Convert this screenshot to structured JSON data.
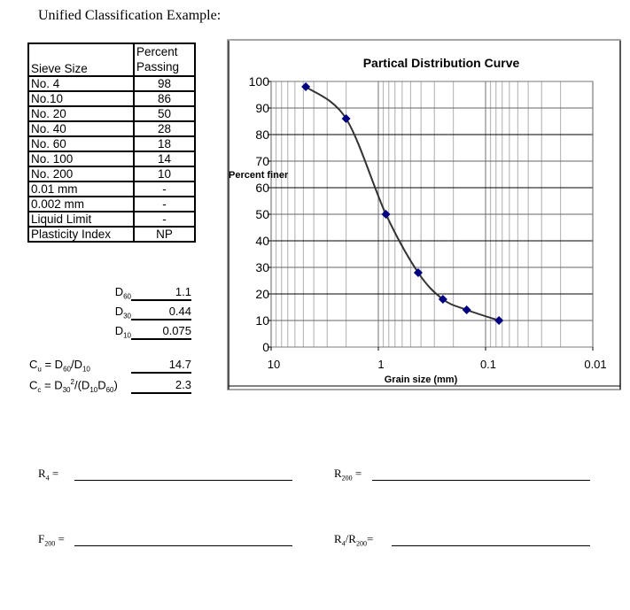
{
  "page": {
    "title": "Unified Classification Example:"
  },
  "sieve_table": {
    "headers": {
      "col1": "Sieve Size",
      "col2_line1": "Percent",
      "col2_line2": "Passing"
    },
    "rows": [
      {
        "label": "No. 4",
        "value": "98"
      },
      {
        "label": "No.10",
        "value": "86"
      },
      {
        "label": "No. 20",
        "value": "50"
      },
      {
        "label": "No. 40",
        "value": "28"
      },
      {
        "label": "No. 60",
        "value": "18"
      },
      {
        "label": "No. 100",
        "value": "14"
      },
      {
        "label": "No. 200",
        "value": "10"
      },
      {
        "label": "0.01 mm",
        "value": "-"
      },
      {
        "label": "0.002 mm",
        "value": "-"
      },
      {
        "label": "Liquid Limit",
        "value": "-"
      },
      {
        "label": "Plasticity Index",
        "value": "NP"
      }
    ]
  },
  "diameters": {
    "d60": {
      "base": "D",
      "sub": "60",
      "value": "1.1"
    },
    "d30": {
      "base": "D",
      "sub": "30",
      "value": "0.44"
    },
    "d10": {
      "base": "D",
      "sub": "10",
      "value": "0.075"
    }
  },
  "coefficients": {
    "cu": {
      "c": "C",
      "c_sub": "u",
      "eq": " = D",
      "d1_sub": "60",
      "slash": "/D",
      "d2_sub": "10",
      "value": "14.7"
    },
    "cc": {
      "c": "C",
      "c_sub": "c",
      "eq": " = D",
      "d1_sub": "30",
      "sup": "2",
      "mid": "/(D",
      "d2_sub": "10",
      "d3": "D",
      "d3_sub": "60",
      "close": ")",
      "value": "2.3"
    }
  },
  "blanks": {
    "r4": {
      "base": "R",
      "sub": "4",
      "eq": " ="
    },
    "r200": {
      "base": "R",
      "sub": "200",
      "eq": " ="
    },
    "f200": {
      "base": "F",
      "sub": "200",
      "eq": " ="
    },
    "ratio": {
      "base": "R",
      "sub": "4",
      "slash": "/R",
      "sub2": "200",
      "eq": "="
    }
  },
  "chart": {
    "title": "Partical Distribution Curve",
    "ylabel": "Percent finer",
    "xlabel": "Grain size (mm)",
    "ytick_labels": [
      "0",
      "10",
      "20",
      "30",
      "40",
      "50",
      "60",
      "70",
      "80",
      "90",
      "100"
    ],
    "xtick_labels": [
      "10",
      "1",
      "0.1",
      "0.01"
    ],
    "marker_color": "#000080",
    "line_color": "#333333"
  },
  "chart_data": {
    "type": "scatter",
    "title": "Partical Distribution Curve",
    "xlabel": "Grain size (mm)",
    "ylabel": "Percent finer",
    "x_scale": "log",
    "x_reversed": true,
    "xlim": [
      10,
      0.01
    ],
    "ylim": [
      0,
      100
    ],
    "grid": true,
    "series": [
      {
        "name": "Percent finer",
        "x": [
          4.75,
          2.0,
          0.85,
          0.425,
          0.25,
          0.15,
          0.075
        ],
        "y": [
          98,
          86,
          50,
          28,
          18,
          14,
          10
        ],
        "smoothed_line": true
      }
    ]
  }
}
